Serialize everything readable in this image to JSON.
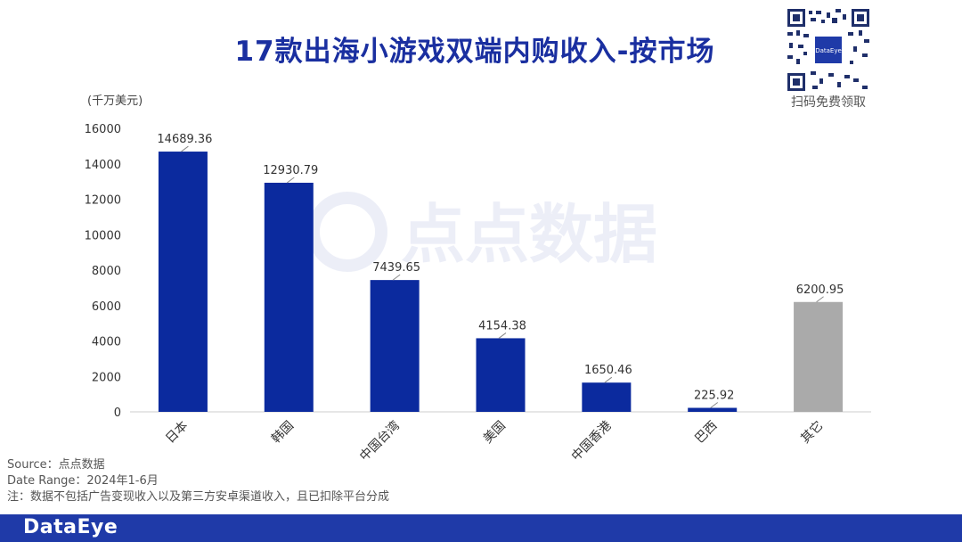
{
  "header": {
    "title": "17款出海小游戏双端内购收入-按市场",
    "qr_caption": "扫码免费领取",
    "qr_logo_text": "DataEye"
  },
  "watermark": {
    "text": "点点数据"
  },
  "chart_data": {
    "type": "bar",
    "unit_label": "(千万美元)",
    "categories": [
      "日本",
      "韩国",
      "中国台湾",
      "美国",
      "中国香港",
      "巴西",
      "其它"
    ],
    "values": [
      14689.36,
      12930.79,
      7439.65,
      4154.38,
      1650.46,
      225.92,
      6200.95
    ],
    "value_labels": [
      "14689.36",
      "12930.79",
      "7439.65",
      "4154.38",
      "1650.46",
      "225.92",
      "6200.95"
    ],
    "bar_colors": [
      "#0b2a9e",
      "#0b2a9e",
      "#0b2a9e",
      "#0b2a9e",
      "#0b2a9e",
      "#0b2a9e",
      "#aaaaaa"
    ],
    "ylim": [
      0,
      16000
    ],
    "yticks": [
      0,
      2000,
      4000,
      6000,
      8000,
      10000,
      12000,
      14000,
      16000
    ],
    "grid": false
  },
  "notes": {
    "source": "Source：点点数据",
    "date_range": "Date Range：2024年1-6月",
    "remark": "注：数据不包括广告变现收入以及第三方安卓渠道收入，且已扣除平台分成"
  },
  "footer": {
    "brand": "DataEye",
    "bar_color": "#1f3aa8"
  }
}
